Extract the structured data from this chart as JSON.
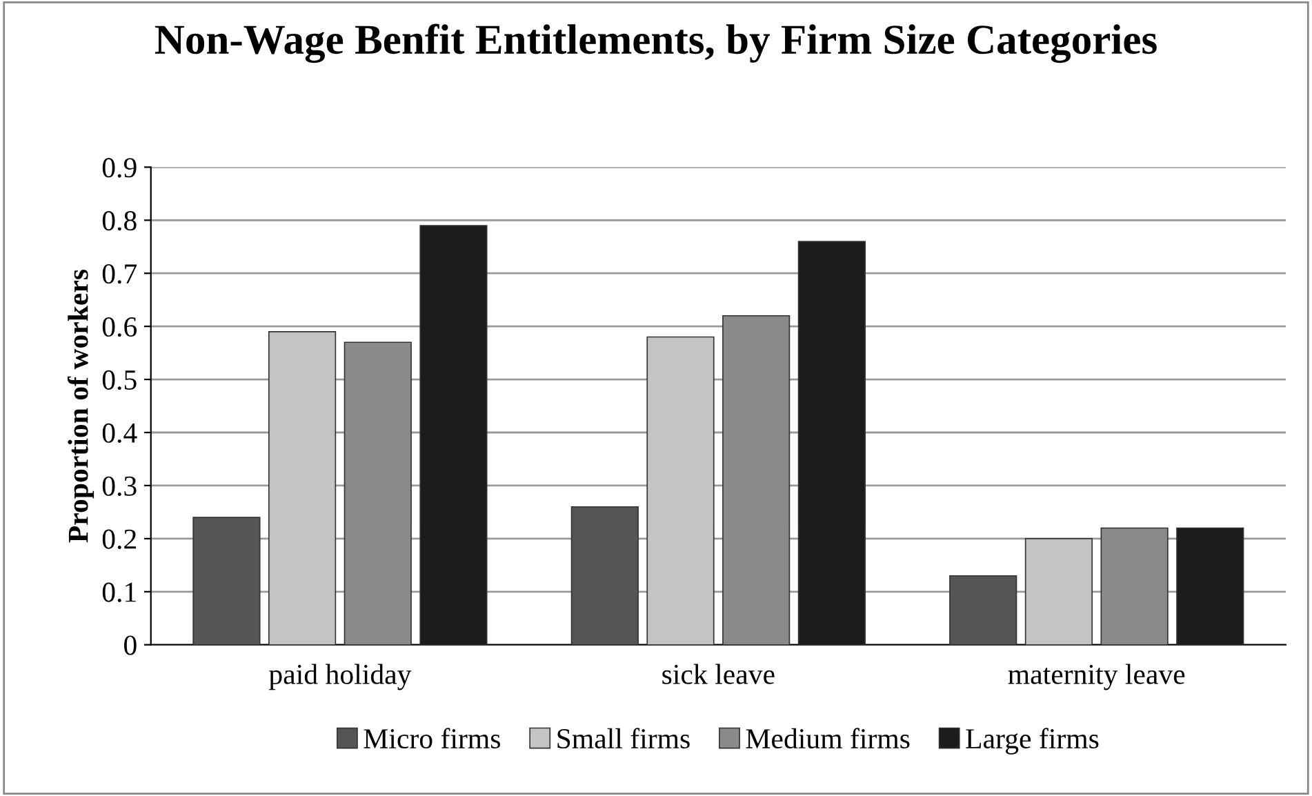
{
  "chart_data": {
    "type": "bar",
    "title": "Non-Wage Benfit Entitlements, by Firm Size Categories",
    "ylabel": "Proportion of workers",
    "categories": [
      "paid holiday",
      "sick leave",
      "maternity leave"
    ],
    "series": [
      {
        "name": "Micro firms",
        "color": "#555555",
        "values": [
          0.24,
          0.26,
          0.13
        ]
      },
      {
        "name": "Small firms",
        "color": "#c4c4c4",
        "values": [
          0.59,
          0.58,
          0.2
        ]
      },
      {
        "name": "Medium firms",
        "color": "#8a8a8a",
        "values": [
          0.57,
          0.62,
          0.22
        ]
      },
      {
        "name": "Large firms",
        "color": "#1c1c1c",
        "values": [
          0.79,
          0.76,
          0.22
        ]
      }
    ],
    "ylim": [
      0,
      0.9
    ],
    "yticks": [
      0,
      0.1,
      0.2,
      0.3,
      0.4,
      0.5,
      0.6,
      0.7,
      0.8,
      0.9
    ],
    "grid": "y",
    "legend": "bottom"
  }
}
